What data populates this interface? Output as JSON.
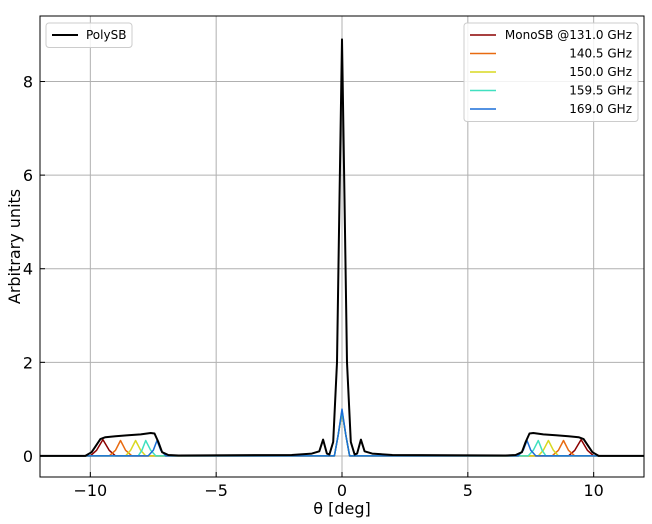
{
  "chart_data": {
    "type": "line",
    "xlabel": "θ [deg]",
    "ylabel": "Arbitrary units",
    "xlim": [
      -12,
      12
    ],
    "ylim": [
      -0.45,
      9.4
    ],
    "xticks": [
      -10,
      -5,
      0,
      5,
      10
    ],
    "xtick_labels": [
      "−10",
      "−5",
      "0",
      "5",
      "10"
    ],
    "yticks": [
      0,
      2,
      4,
      6,
      8
    ],
    "ytick_labels": [
      "0",
      "2",
      "4",
      "6",
      "8"
    ],
    "grid": true,
    "legends": [
      {
        "placement": "top-left",
        "entries": [
          {
            "series": "polysb",
            "label": "PolySB"
          }
        ]
      },
      {
        "placement": "top-right",
        "entries": [
          {
            "series": "mono131",
            "label": "MonoSB @131.0 GHz"
          },
          {
            "series": "mono140",
            "label": "140.5 GHz"
          },
          {
            "series": "mono150",
            "label": "150.0 GHz"
          },
          {
            "series": "mono159",
            "label": "159.5 GHz"
          },
          {
            "series": "mono169",
            "label": "169.0 GHz"
          }
        ]
      }
    ],
    "series": [
      {
        "id": "polysb",
        "name": "PolySB",
        "color": "#000000",
        "x": [
          -12,
          -10.2,
          -9.95,
          -9.8,
          -9.6,
          -9.4,
          -9.0,
          -8.5,
          -8.0,
          -7.6,
          -7.45,
          -7.3,
          -7.15,
          -6.9,
          -6.5,
          -2.0,
          -1.2,
          -0.9,
          -0.75,
          -0.6,
          -0.5,
          -0.35,
          -0.2,
          -0.1,
          0,
          0.1,
          0.2,
          0.35,
          0.5,
          0.6,
          0.75,
          0.9,
          1.2,
          2.0,
          6.5,
          6.9,
          7.15,
          7.3,
          7.45,
          7.6,
          8.0,
          8.5,
          9.0,
          9.4,
          9.6,
          9.8,
          9.95,
          10.2,
          12
        ],
        "y": [
          0,
          0.0,
          0.08,
          0.2,
          0.36,
          0.4,
          0.42,
          0.44,
          0.46,
          0.49,
          0.48,
          0.3,
          0.08,
          0.02,
          0.01,
          0.02,
          0.05,
          0.1,
          0.35,
          0.05,
          0.03,
          0.3,
          2.0,
          5.5,
          8.9,
          5.5,
          2.0,
          0.3,
          0.03,
          0.05,
          0.35,
          0.1,
          0.05,
          0.02,
          0.01,
          0.02,
          0.08,
          0.3,
          0.48,
          0.49,
          0.46,
          0.44,
          0.42,
          0.4,
          0.36,
          0.2,
          0.08,
          0.0,
          0
        ]
      },
      {
        "id": "mono131",
        "name": "MonoSB @131.0 GHz",
        "color": "#8b0000",
        "x": [
          -12,
          -10.0,
          -9.75,
          -9.5,
          -9.25,
          -9.0,
          -0.3,
          -0.15,
          0,
          0.15,
          0.3,
          9.0,
          9.25,
          9.5,
          9.75,
          10.0,
          12
        ],
        "y": [
          0,
          0,
          0.12,
          0.35,
          0.12,
          0,
          0,
          0.45,
          0.95,
          0.45,
          0,
          0,
          0.12,
          0.35,
          0.12,
          0,
          0
        ]
      },
      {
        "id": "mono140",
        "name": "140.5 GHz",
        "color": "#e86a10",
        "x": [
          -12,
          -9.25,
          -9.0,
          -8.8,
          -8.6,
          -8.35,
          -0.3,
          -0.15,
          0,
          0.15,
          0.3,
          8.35,
          8.6,
          8.8,
          9.0,
          9.25,
          12
        ],
        "y": [
          0,
          0,
          0.12,
          0.33,
          0.12,
          0,
          0,
          0.45,
          0.95,
          0.45,
          0,
          0,
          0.12,
          0.33,
          0.12,
          0,
          0
        ]
      },
      {
        "id": "mono150",
        "name": "150.0 GHz",
        "color": "#d8d820",
        "x": [
          -12,
          -8.6,
          -8.4,
          -8.2,
          -8.0,
          -7.8,
          -0.3,
          -0.15,
          0,
          0.15,
          0.3,
          7.8,
          8.0,
          8.2,
          8.4,
          8.6,
          12
        ],
        "y": [
          0,
          0,
          0.12,
          0.33,
          0.12,
          0,
          0,
          0.45,
          0.95,
          0.45,
          0,
          0,
          0.12,
          0.33,
          0.12,
          0,
          0
        ]
      },
      {
        "id": "mono159",
        "name": "159.5 GHz",
        "color": "#40e0c0",
        "x": [
          -12,
          -8.1,
          -7.95,
          -7.8,
          -7.6,
          -7.4,
          -0.3,
          -0.15,
          0,
          0.15,
          0.3,
          7.4,
          7.6,
          7.8,
          7.95,
          8.1,
          12
        ],
        "y": [
          0,
          0,
          0.12,
          0.33,
          0.12,
          0,
          0,
          0.45,
          0.95,
          0.45,
          0,
          0,
          0.12,
          0.33,
          0.12,
          0,
          0
        ]
      },
      {
        "id": "mono169",
        "name": "169.0 GHz",
        "color": "#1a6ed8",
        "x": [
          -12,
          -7.7,
          -7.5,
          -7.35,
          -7.2,
          -7.0,
          -0.3,
          -0.15,
          0,
          0.15,
          0.3,
          7.0,
          7.2,
          7.35,
          7.5,
          7.7,
          12
        ],
        "y": [
          0,
          0,
          0.12,
          0.33,
          0.12,
          0,
          0,
          0.45,
          1.0,
          0.45,
          0,
          0,
          0.12,
          0.33,
          0.12,
          0,
          0
        ]
      }
    ]
  }
}
